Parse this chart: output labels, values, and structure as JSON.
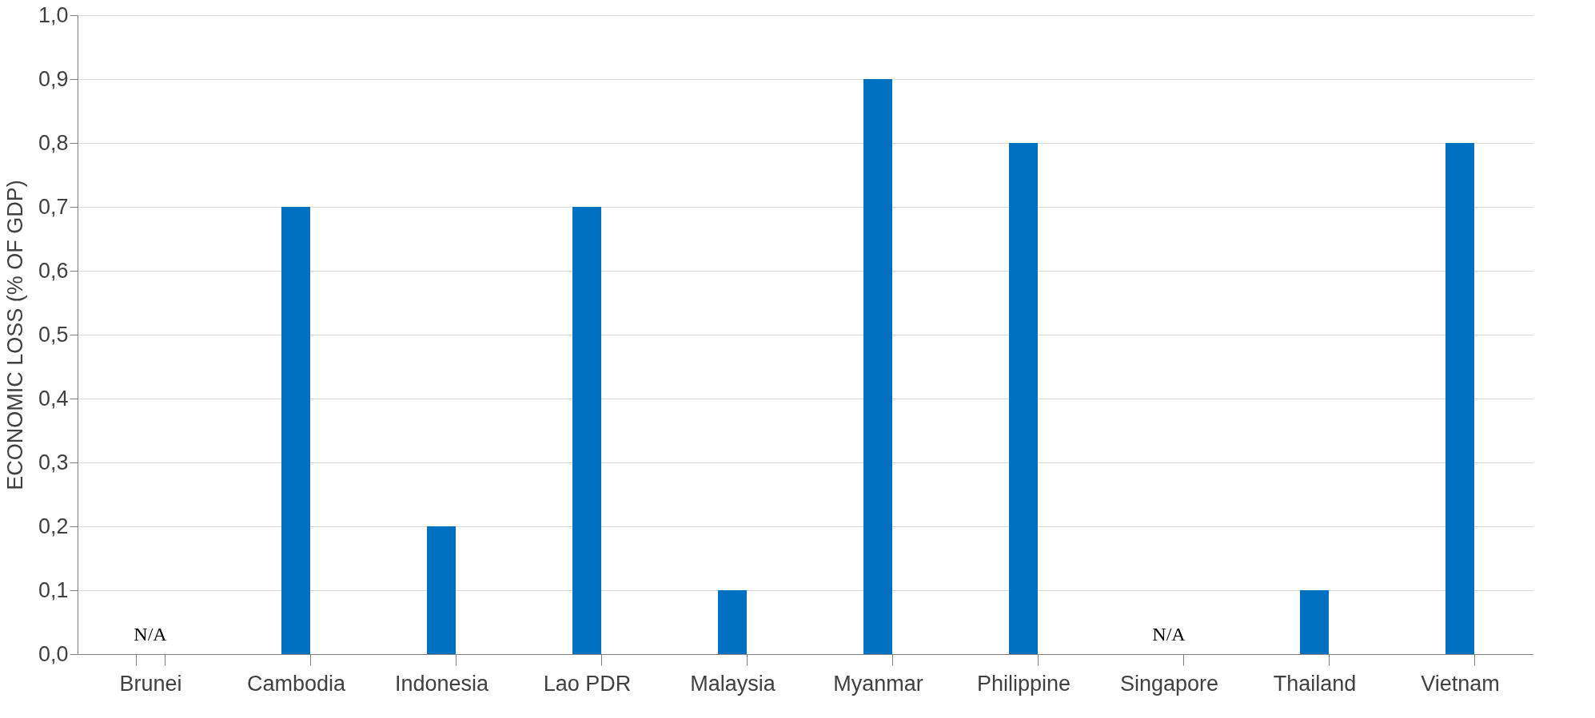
{
  "chart_data": {
    "type": "bar",
    "ylabel": "ECONOMIC LOSS (% OF GDP)",
    "categories": [
      "Brunei",
      "Cambodia",
      "Indonesia",
      "Lao PDR",
      "Malaysia",
      "Myanmar",
      "Philippine",
      "Singapore",
      "Thailand",
      "Vietnam"
    ],
    "values": [
      null,
      0.7,
      0.2,
      0.7,
      0.1,
      0.9,
      0.8,
      null,
      0.1,
      0.8
    ],
    "value_labels": [
      "N/A",
      null,
      null,
      null,
      null,
      null,
      null,
      "N/A",
      null,
      null
    ],
    "color": "#0070c0",
    "ylim": [
      0,
      1.0
    ],
    "yticks": [
      {
        "value": 0,
        "label": "0,0"
      },
      {
        "value": 0.1,
        "label": "0,1"
      },
      {
        "value": 0.2,
        "label": "0,2"
      },
      {
        "value": 0.3,
        "label": "0,3"
      },
      {
        "value": 0.4,
        "label": "0,4"
      },
      {
        "value": 0.5,
        "label": "0,5"
      },
      {
        "value": 0.6,
        "label": "0,6"
      },
      {
        "value": 0.7,
        "label": "0,7"
      },
      {
        "value": 0.8,
        "label": "0,8"
      },
      {
        "value": 0.9,
        "label": "0,9"
      },
      {
        "value": 1.0,
        "label": "1,0"
      }
    ],
    "grid": "y"
  }
}
